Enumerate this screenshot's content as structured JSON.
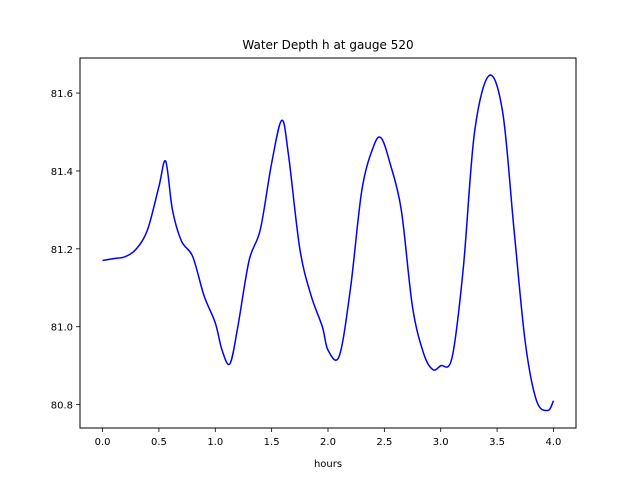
{
  "chart_data": {
    "type": "line",
    "title": "Water Depth h at gauge 520",
    "xlabel": "hours",
    "ylabel": "",
    "xlim": [
      -0.2,
      4.2
    ],
    "ylim": [
      80.74,
      81.69
    ],
    "xticks": [
      "0.0",
      "0.5",
      "1.0",
      "1.5",
      "2.0",
      "2.5",
      "3.0",
      "3.5",
      "4.0"
    ],
    "yticks": [
      "80.8",
      "81.0",
      "81.2",
      "81.4",
      "81.6"
    ],
    "grid": false,
    "series": [
      {
        "color": "#0000ff",
        "x": [
          0.0,
          0.1,
          0.2,
          0.3,
          0.4,
          0.5,
          0.56,
          0.62,
          0.7,
          0.8,
          0.9,
          1.0,
          1.06,
          1.13,
          1.2,
          1.3,
          1.4,
          1.5,
          1.59,
          1.65,
          1.75,
          1.85,
          1.95,
          2.0,
          2.1,
          2.2,
          2.3,
          2.4,
          2.47,
          2.55,
          2.65,
          2.75,
          2.85,
          2.93,
          3.0,
          3.1,
          3.2,
          3.3,
          3.43,
          3.55,
          3.65,
          3.75,
          3.85,
          3.95,
          4.0
        ],
        "y": [
          81.17,
          81.175,
          81.18,
          81.2,
          81.25,
          81.36,
          81.425,
          81.3,
          81.22,
          81.18,
          81.08,
          81.01,
          80.94,
          80.905,
          81.0,
          81.17,
          81.25,
          81.42,
          81.53,
          81.44,
          81.2,
          81.08,
          81.0,
          80.94,
          80.925,
          81.1,
          81.35,
          81.46,
          81.485,
          81.42,
          81.3,
          81.05,
          80.93,
          80.89,
          80.9,
          80.92,
          81.15,
          81.5,
          81.645,
          81.55,
          81.25,
          80.96,
          80.81,
          80.785,
          80.81
        ]
      }
    ]
  }
}
